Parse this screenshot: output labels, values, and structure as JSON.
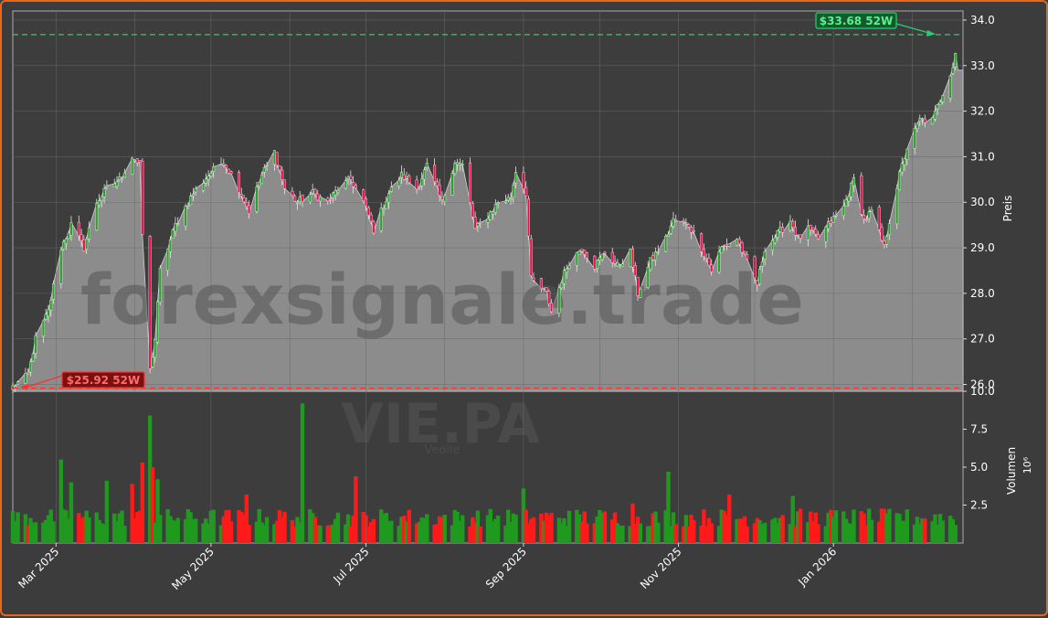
{
  "chart_data": [
    {
      "type": "candlestick",
      "xlabel": "",
      "ylabel": "Preis",
      "ylim": [
        25.85,
        34.2
      ],
      "yticks": [
        "26.0",
        "27.0",
        "28.0",
        "29.0",
        "30.0",
        "31.0",
        "32.0",
        "33.0",
        "34.0"
      ],
      "xticks": [
        "Mar 2025",
        "May 2025",
        "Jul 2025",
        "Sep 2025",
        "Nov 2025",
        "Jan 2026"
      ],
      "xlim": [
        "2025-02-12",
        "2026-02-21"
      ],
      "grid": true,
      "watermark": "forexsignale.trade",
      "annotations": {
        "high_52w": {
          "label": "$33.68 52W",
          "value": 33.68,
          "color": "#2ecc71"
        },
        "low_52w": {
          "label": "$25.92 52W",
          "value": 25.92,
          "color": "#ff3030"
        }
      },
      "up_color": "#2ca02c",
      "down_color": "#e8114f",
      "area_color": "#8c8c8c",
      "anchors": [
        [
          "2025-02-12",
          25.95
        ],
        [
          "2025-02-18",
          26.2
        ],
        [
          "2025-02-21",
          27.0
        ],
        [
          "2025-02-26",
          27.6
        ],
        [
          "2025-03-03",
          29.0
        ],
        [
          "2025-03-07",
          29.5
        ],
        [
          "2025-03-12",
          29.0
        ],
        [
          "2025-03-17",
          30.0
        ],
        [
          "2025-03-21",
          30.3
        ],
        [
          "2025-03-26",
          30.5
        ],
        [
          "2025-03-31",
          31.0
        ],
        [
          "2025-04-03",
          30.8
        ],
        [
          "2025-04-04",
          29.3
        ],
        [
          "2025-04-07",
          26.3
        ],
        [
          "2025-04-09",
          27.0
        ],
        [
          "2025-04-11",
          28.5
        ],
        [
          "2025-04-17",
          29.5
        ],
        [
          "2025-04-24",
          30.2
        ],
        [
          "2025-04-30",
          30.6
        ],
        [
          "2025-05-06",
          30.9
        ],
        [
          "2025-05-12",
          30.3
        ],
        [
          "2025-05-16",
          29.8
        ],
        [
          "2025-05-21",
          30.6
        ],
        [
          "2025-05-26",
          31.1
        ],
        [
          "2025-05-30",
          30.3
        ],
        [
          "2025-06-04",
          30.0
        ],
        [
          "2025-06-10",
          30.2
        ],
        [
          "2025-06-16",
          30.0
        ],
        [
          "2025-06-20",
          30.3
        ],
        [
          "2025-06-25",
          30.5
        ],
        [
          "2025-06-30",
          30.0
        ],
        [
          "2025-07-04",
          29.4
        ],
        [
          "2025-07-10",
          30.2
        ],
        [
          "2025-07-15",
          30.6
        ],
        [
          "2025-07-21",
          30.3
        ],
        [
          "2025-07-25",
          30.8
        ],
        [
          "2025-07-31",
          30.0
        ],
        [
          "2025-08-05",
          30.9
        ],
        [
          "2025-08-08",
          30.8
        ],
        [
          "2025-08-13",
          29.4
        ],
        [
          "2025-08-18",
          29.7
        ],
        [
          "2025-08-22",
          30.0
        ],
        [
          "2025-08-27",
          30.1
        ],
        [
          "2025-08-29",
          30.7
        ],
        [
          "2025-09-02",
          30.2
        ],
        [
          "2025-09-04",
          28.3
        ],
        [
          "2025-09-10",
          28.0
        ],
        [
          "2025-09-12",
          27.6
        ],
        [
          "2025-09-16",
          28.3
        ],
        [
          "2025-09-19",
          28.7
        ],
        [
          "2025-09-24",
          29.0
        ],
        [
          "2025-09-29",
          28.6
        ],
        [
          "2025-10-03",
          28.9
        ],
        [
          "2025-10-08",
          28.6
        ],
        [
          "2025-10-13",
          28.9
        ],
        [
          "2025-10-16",
          28.0
        ],
        [
          "2025-10-21",
          28.7
        ],
        [
          "2025-10-27",
          29.2
        ],
        [
          "2025-10-30",
          29.6
        ],
        [
          "2025-11-05",
          29.5
        ],
        [
          "2025-11-10",
          29.0
        ],
        [
          "2025-11-14",
          28.5
        ],
        [
          "2025-11-18",
          29.0
        ],
        [
          "2025-11-24",
          29.2
        ],
        [
          "2025-11-27",
          28.8
        ],
        [
          "2025-12-02",
          28.2
        ],
        [
          "2025-12-05",
          29.0
        ],
        [
          "2025-12-10",
          29.3
        ],
        [
          "2025-12-15",
          29.6
        ],
        [
          "2025-12-18",
          29.2
        ],
        [
          "2025-12-22",
          29.4
        ],
        [
          "2025-12-26",
          29.2
        ],
        [
          "2025-12-30",
          29.5
        ],
        [
          "2026-01-05",
          29.9
        ],
        [
          "2026-01-09",
          30.5
        ],
        [
          "2026-01-13",
          29.6
        ],
        [
          "2026-01-16",
          29.8
        ],
        [
          "2026-01-21",
          29.0
        ],
        [
          "2026-01-23",
          29.6
        ],
        [
          "2026-01-27",
          30.6
        ],
        [
          "2026-01-30",
          31.2
        ],
        [
          "2026-02-04",
          31.8
        ],
        [
          "2026-02-09",
          31.8
        ],
        [
          "2026-02-13",
          32.4
        ],
        [
          "2026-02-17",
          33.0
        ],
        [
          "2026-02-18",
          33.3
        ]
      ],
      "area_tail": [
        [
          "2026-02-19",
          32.9
        ],
        [
          "2026-02-21",
          32.9
        ]
      ]
    },
    {
      "type": "bar",
      "ylabel": "Volumen",
      "ylabel_exponent": "10⁶",
      "yticks": [
        "2.5",
        "5.0",
        "7.5",
        "10.0"
      ],
      "ylim": [
        0,
        10
      ],
      "base_level": 1.5,
      "spikes": [
        [
          "2025-03-03",
          5.5,
          "up"
        ],
        [
          "2025-03-07",
          4.0,
          "up"
        ],
        [
          "2025-03-21",
          4.1,
          "up"
        ],
        [
          "2025-03-31",
          3.9,
          "down"
        ],
        [
          "2025-04-04",
          5.3,
          "down"
        ],
        [
          "2025-04-07",
          8.4,
          "up"
        ],
        [
          "2025-04-08",
          5.0,
          "down"
        ],
        [
          "2025-04-10",
          4.2,
          "up"
        ],
        [
          "2025-05-15",
          3.2,
          "down"
        ],
        [
          "2025-06-06",
          9.2,
          "up"
        ],
        [
          "2025-06-27",
          4.4,
          "down"
        ],
        [
          "2025-09-01",
          3.6,
          "up"
        ],
        [
          "2025-10-14",
          2.6,
          "down"
        ],
        [
          "2025-10-28",
          4.7,
          "up"
        ],
        [
          "2025-11-21",
          3.2,
          "down"
        ],
        [
          "2025-12-16",
          3.1,
          "up"
        ]
      ]
    }
  ]
}
